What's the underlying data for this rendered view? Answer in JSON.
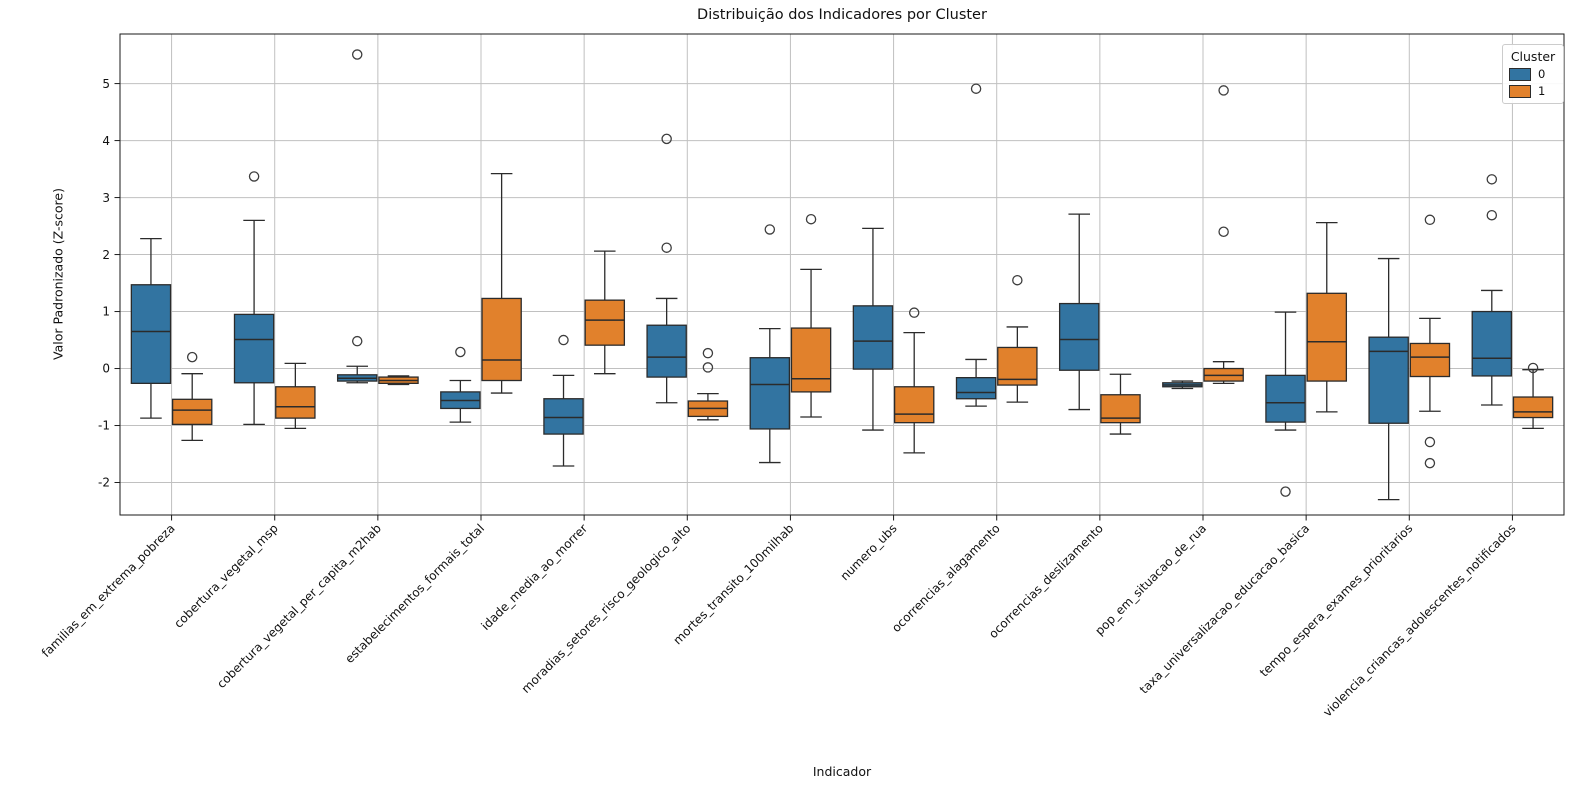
{
  "figure": {
    "title": "Distribuição dos Indicadores por Cluster",
    "xlabel": "Indicador",
    "ylabel": "Valor Padronizado (Z-score)",
    "legend": {
      "title": "Cluster",
      "entries": [
        {
          "label": "0",
          "color": "#3274a1"
        },
        {
          "label": "1",
          "color": "#e1812c"
        }
      ]
    }
  },
  "chart_data": {
    "type": "grouped_boxplot",
    "title": "Distribuição dos Indicadores por Cluster",
    "xlabel": "Indicador",
    "ylabel": "Valor Padronizado (Z-score)",
    "ylim": [
      -2.57,
      5.87
    ],
    "yticks": [
      -2,
      -1,
      0,
      1,
      2,
      3,
      4,
      5
    ],
    "grid": true,
    "legend_position": "upper right",
    "colors": {
      "edge": "#2b2b2b",
      "grid": "#c0c0c0",
      "flier_edge": "#3d3d3d",
      "spine": "#1a1a1a"
    },
    "categories": [
      "familias_em_extrema_pobreza",
      "cobertura_vegetal_msp",
      "cobertura_vegetal_per_capita_m2hab",
      "estabelecimentos_formais_total",
      "idade_media_ao_morrer",
      "moradias_setores_risco_geologico_alto",
      "mortes_transito_100milhab",
      "numero_ubs",
      "ocorrencias_alagamento",
      "ocorrencias_deslizamento",
      "pop_em_situacao_de_rua",
      "taxa_universalizacao_educacao_basica",
      "tempo_espera_exames_prioritarios",
      "violencia_criancas_adolescentes_notificados"
    ],
    "series": [
      {
        "name": "0",
        "color": "#3274a1",
        "boxes": [
          {
            "whislo": -0.87,
            "q1": -0.26,
            "med": 0.65,
            "q3": 1.47,
            "whishi": 2.28,
            "fliers": []
          },
          {
            "whislo": -0.98,
            "q1": -0.25,
            "med": 0.51,
            "q3": 0.95,
            "whishi": 2.6,
            "fliers": [
              3.37
            ]
          },
          {
            "whislo": -0.25,
            "q1": -0.22,
            "med": -0.17,
            "q3": -0.11,
            "whishi": 0.04,
            "fliers": [
              0.48,
              5.51
            ]
          },
          {
            "whislo": -0.94,
            "q1": -0.7,
            "med": -0.56,
            "q3": -0.41,
            "whishi": -0.21,
            "fliers": [
              0.29
            ]
          },
          {
            "whislo": -1.71,
            "q1": -1.15,
            "med": -0.86,
            "q3": -0.53,
            "whishi": -0.12,
            "fliers": [
              0.5
            ]
          },
          {
            "whislo": -0.6,
            "q1": -0.15,
            "med": 0.2,
            "q3": 0.76,
            "whishi": 1.23,
            "fliers": [
              2.12,
              4.03
            ]
          },
          {
            "whislo": -1.65,
            "q1": -1.06,
            "med": -0.28,
            "q3": 0.19,
            "whishi": 0.7,
            "fliers": [
              2.44
            ]
          },
          {
            "whislo": -1.08,
            "q1": -0.01,
            "med": 0.48,
            "q3": 1.1,
            "whishi": 2.46,
            "fliers": []
          },
          {
            "whislo": -0.66,
            "q1": -0.53,
            "med": -0.42,
            "q3": -0.16,
            "whishi": 0.16,
            "fliers": [
              4.91
            ]
          },
          {
            "whislo": -0.72,
            "q1": -0.03,
            "med": 0.51,
            "q3": 1.14,
            "whishi": 2.71,
            "fliers": []
          },
          {
            "whislo": -0.35,
            "q1": -0.32,
            "med": -0.29,
            "q3": -0.25,
            "whishi": -0.22,
            "fliers": []
          },
          {
            "whislo": -1.08,
            "q1": -0.94,
            "med": -0.6,
            "q3": -0.12,
            "whishi": 0.99,
            "fliers": [
              -2.16
            ]
          },
          {
            "whislo": -2.3,
            "q1": -0.96,
            "med": 0.3,
            "q3": 0.55,
            "whishi": 1.93,
            "fliers": []
          },
          {
            "whislo": -0.64,
            "q1": -0.13,
            "med": 0.18,
            "q3": 1.0,
            "whishi": 1.37,
            "fliers": [
              2.69,
              3.32
            ]
          }
        ]
      },
      {
        "name": "1",
        "color": "#e1812c",
        "boxes": [
          {
            "whislo": -1.26,
            "q1": -0.98,
            "med": -0.73,
            "q3": -0.54,
            "whishi": -0.09,
            "fliers": [
              0.2
            ]
          },
          {
            "whislo": -1.05,
            "q1": -0.87,
            "med": -0.67,
            "q3": -0.32,
            "whishi": 0.09,
            "fliers": []
          },
          {
            "whislo": -0.28,
            "q1": -0.26,
            "med": -0.21,
            "q3": -0.15,
            "whishi": -0.13,
            "fliers": []
          },
          {
            "whislo": -0.43,
            "q1": -0.21,
            "med": 0.15,
            "q3": 1.23,
            "whishi": 3.42,
            "fliers": []
          },
          {
            "whislo": -0.09,
            "q1": 0.41,
            "med": 0.85,
            "q3": 1.2,
            "whishi": 2.06,
            "fliers": []
          },
          {
            "whislo": -0.9,
            "q1": -0.84,
            "med": -0.7,
            "q3": -0.57,
            "whishi": -0.44,
            "fliers": [
              0.02,
              0.27
            ]
          },
          {
            "whislo": -0.85,
            "q1": -0.41,
            "med": -0.18,
            "q3": 0.71,
            "whishi": 1.74,
            "fliers": [
              2.62
            ]
          },
          {
            "whislo": -1.48,
            "q1": -0.95,
            "med": -0.8,
            "q3": -0.32,
            "whishi": 0.63,
            "fliers": [
              0.98
            ]
          },
          {
            "whislo": -0.59,
            "q1": -0.29,
            "med": -0.19,
            "q3": 0.37,
            "whishi": 0.73,
            "fliers": [
              1.55
            ]
          },
          {
            "whislo": -1.15,
            "q1": -0.95,
            "med": -0.87,
            "q3": -0.46,
            "whishi": -0.1,
            "fliers": []
          },
          {
            "whislo": -0.26,
            "q1": -0.22,
            "med": -0.12,
            "q3": 0.0,
            "whishi": 0.12,
            "fliers": [
              2.4,
              4.88
            ]
          },
          {
            "whislo": -0.76,
            "q1": -0.22,
            "med": 0.47,
            "q3": 1.32,
            "whishi": 2.56,
            "fliers": []
          },
          {
            "whislo": -0.75,
            "q1": -0.14,
            "med": 0.2,
            "q3": 0.44,
            "whishi": 0.88,
            "fliers": [
              2.61,
              -1.29,
              -1.66
            ]
          },
          {
            "whislo": -1.05,
            "q1": -0.86,
            "med": -0.76,
            "q3": -0.5,
            "whishi": -0.02,
            "fliers": [
              0.01
            ]
          }
        ]
      }
    ]
  }
}
